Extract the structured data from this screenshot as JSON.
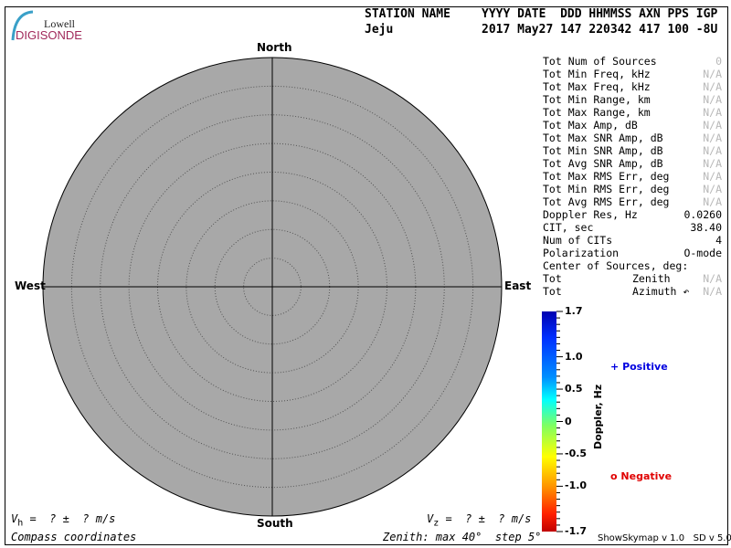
{
  "logo": {
    "top": "Lowell",
    "bottom": "DIGISONDE"
  },
  "header": {
    "labels_left": "STATION NAME",
    "labels_right": "YYYY DATE  DDD HHMMSS AXN PPS IGP",
    "station": "Jeju",
    "values_right": "2017 May27 147 220342 417 100 -8U"
  },
  "compass": {
    "north": "North",
    "south": "South",
    "east": "East",
    "west": "West"
  },
  "skymap": {
    "max_zenith_deg": 40,
    "step_deg": 5,
    "fill": "#a8a8a8"
  },
  "info": [
    {
      "label": "Tot Num of Sources",
      "value": "0",
      "na": true
    },
    {
      "label": "Tot Min Freq, kHz",
      "value": "N/A",
      "na": true
    },
    {
      "label": "Tot Max Freq, kHz",
      "value": "N/A",
      "na": true
    },
    {
      "label": "Tot Min Range, km",
      "value": "N/A",
      "na": true
    },
    {
      "label": "Tot Max Range, km",
      "value": "N/A",
      "na": true
    },
    {
      "label": "Tot Max Amp, dB",
      "value": "N/A",
      "na": true
    },
    {
      "label": "Tot Max SNR Amp, dB",
      "value": "N/A",
      "na": true
    },
    {
      "label": "Tot Min SNR Amp, dB",
      "value": "N/A",
      "na": true
    },
    {
      "label": "Tot Avg SNR Amp, dB",
      "value": "N/A",
      "na": true
    },
    {
      "label": "Tot Max RMS Err, deg",
      "value": "N/A",
      "na": true
    },
    {
      "label": "Tot Min RMS Err, deg",
      "value": "N/A",
      "na": true
    },
    {
      "label": "Tot Avg RMS Err, deg",
      "value": "N/A",
      "na": true
    },
    {
      "label": "Doppler Res, Hz",
      "value": "0.0260",
      "na": false
    },
    {
      "label": "CIT, sec",
      "value": "38.40",
      "na": false
    },
    {
      "label": "Num of CITs",
      "value": "4",
      "na": false
    },
    {
      "label": "Polarization",
      "value": "O-mode",
      "na": false
    },
    {
      "label": "Center of Sources, deg:",
      "value": "",
      "na": false
    },
    {
      "label": "Tot",
      "mid": "Zenith",
      "value": "N/A",
      "na": true
    },
    {
      "label": "Tot",
      "mid": "Azimuth ↶",
      "value": "N/A",
      "na": true
    }
  ],
  "colorbar": {
    "label": "Doppler, Hz",
    "ticks": [
      "1.7",
      "1.0",
      "0.5",
      "0",
      "-0.5",
      "-1.0",
      "-1.7"
    ],
    "min": -1.7,
    "max": 1.7
  },
  "legend": {
    "positive": "Positive",
    "negative": "Negative",
    "positive_symbol": "+",
    "negative_symbol": "o",
    "positive_color": "#0000e0",
    "negative_color": "#e00000"
  },
  "footer": {
    "vh_label": "V",
    "vh_sub": "h",
    "vh_text": " =  ? ±  ? m/s",
    "vz_label": "V",
    "vz_sub": "z",
    "vz_text": " =  ? ±  ? m/s",
    "coords": "Compass coordinates",
    "zenith": "Zenith: max 40°  step 5°",
    "version": "ShowSkymap v 1.0   SD v 5.0"
  }
}
